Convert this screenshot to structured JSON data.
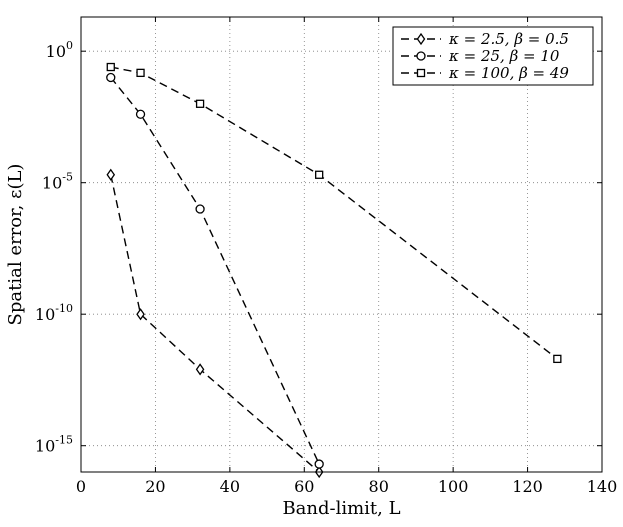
{
  "chart_data": {
    "type": "line",
    "xlabel": "Band-limit, L",
    "ylabel": "Spatial error, ε(L)",
    "xlim": [
      0,
      140
    ],
    "ylim_log10": [
      -16,
      1.3
    ],
    "y_scale": "log",
    "grid": true,
    "grid_style": "dotted",
    "legend_position": "top-right",
    "x_ticks": [
      0,
      20,
      40,
      60,
      80,
      100,
      120,
      140
    ],
    "x_tick_labels": [
      "0",
      "20",
      "40",
      "60",
      "80",
      "100",
      "120",
      "140"
    ],
    "y_ticks_log10": [
      0,
      -5,
      -10,
      -15
    ],
    "y_tick_labels": [
      {
        "base": "10",
        "exp": "0"
      },
      {
        "base": "10",
        "exp": "-5"
      },
      {
        "base": "10",
        "exp": "-10"
      },
      {
        "base": "10",
        "exp": "-15"
      }
    ],
    "series": [
      {
        "name": "κ = 2.5, β = 0.5",
        "marker": "diamond",
        "x": [
          8,
          16,
          32,
          64
        ],
        "y": [
          2e-05,
          1e-10,
          8e-13,
          1e-16
        ]
      },
      {
        "name": "κ = 25, β = 10",
        "marker": "circle",
        "x": [
          8,
          16,
          32,
          64
        ],
        "y": [
          0.1,
          0.004,
          1e-06,
          2e-16
        ]
      },
      {
        "name": "κ = 100, β = 49",
        "marker": "square",
        "x": [
          8,
          16,
          32,
          64,
          128
        ],
        "y": [
          0.25,
          0.15,
          0.01,
          2e-05,
          2e-12
        ]
      }
    ]
  },
  "colors": {
    "line": "#000000",
    "grid": "#7f7f7f",
    "background": "#ffffff"
  }
}
